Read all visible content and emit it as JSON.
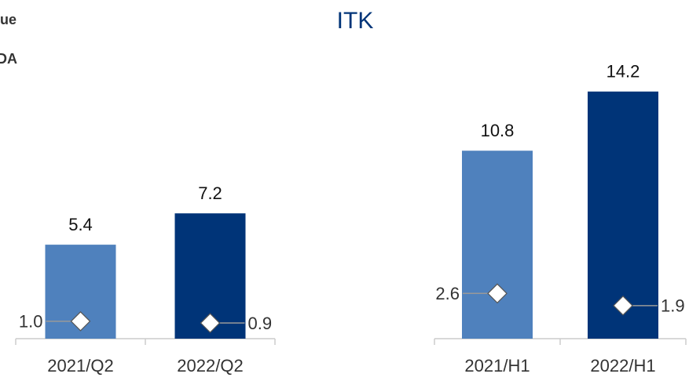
{
  "title": "ITK",
  "legend": [
    "ue",
    "DA"
  ],
  "chart_data": [
    {
      "type": "bar",
      "categories": [
        "2021/Q2",
        "2022/Q2"
      ],
      "ylim": [
        0,
        16
      ],
      "series": [
        {
          "kind": "bar",
          "colors": [
            "#4f81bd",
            "#003478"
          ],
          "values": [
            5.4,
            7.2
          ]
        },
        {
          "kind": "diamond",
          "values": [
            1,
            0.9
          ],
          "value_labels": [
            "1.0",
            "0.9"
          ]
        }
      ]
    },
    {
      "type": "bar",
      "categories": [
        "2021/H1",
        "2022/H1"
      ],
      "ylim": [
        0,
        16
      ],
      "series": [
        {
          "kind": "bar",
          "colors": [
            "#4f81bd",
            "#003478"
          ],
          "values": [
            10.8,
            14.2
          ]
        },
        {
          "kind": "diamond",
          "values": [
            2.6,
            1.9
          ]
        }
      ]
    }
  ]
}
